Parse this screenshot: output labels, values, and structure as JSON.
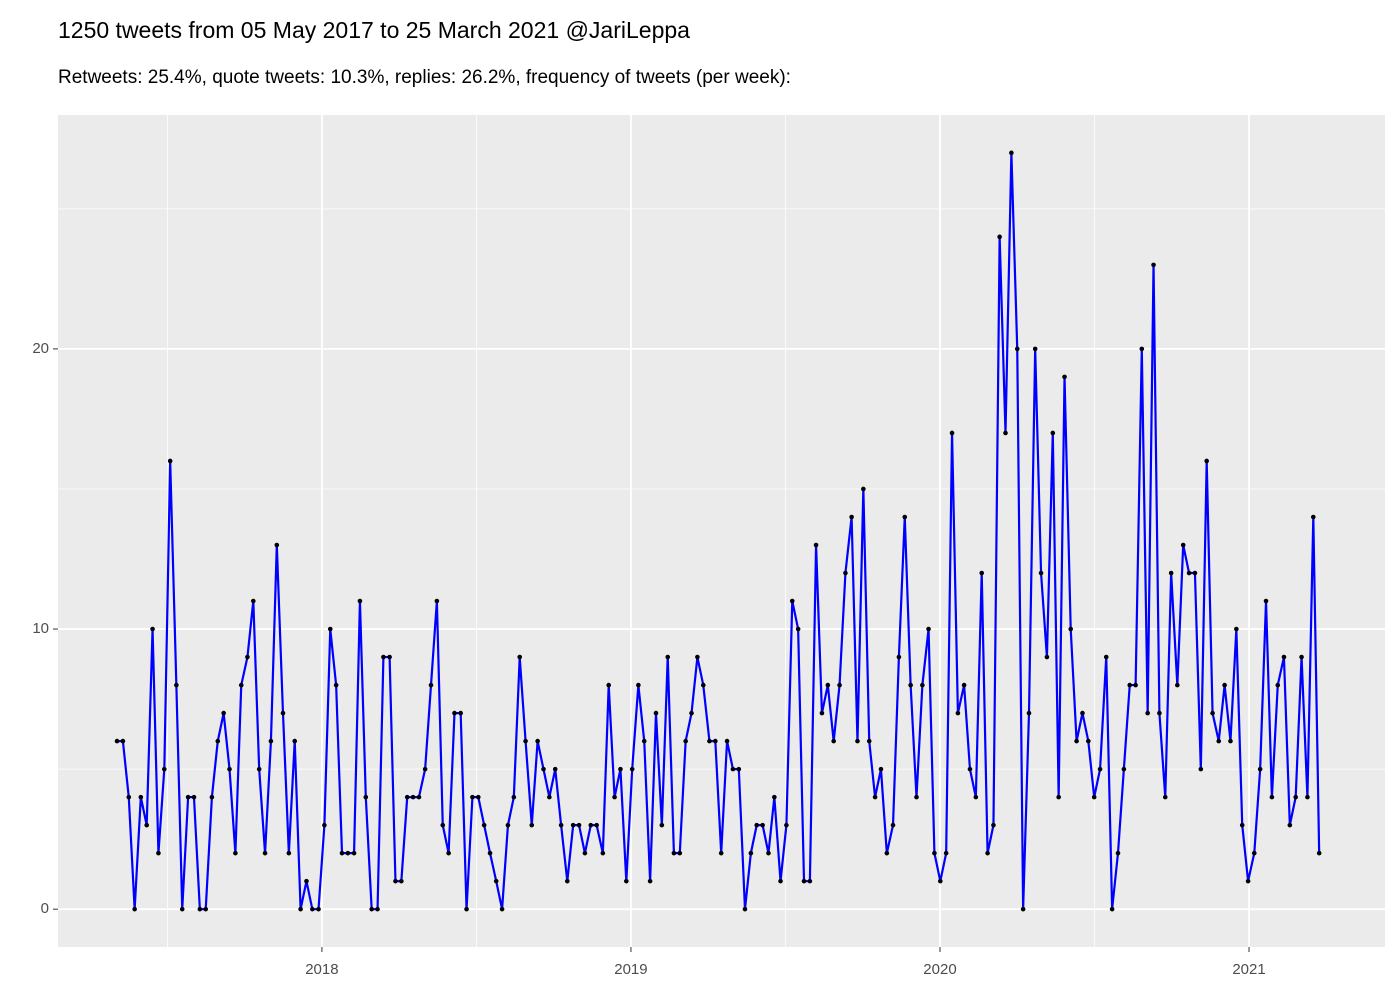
{
  "chart_data": {
    "type": "line",
    "title": "1250 tweets from 05 May 2017 to 25 March 2021 @JariLeppa",
    "subtitle": "Retweets: 25.4%, quote tweets: 10.3%, replies: 26.2%, frequency of tweets (per week):",
    "color": "#0000ff",
    "marker_color": "#000000",
    "grid": true,
    "xlim": [
      2017.146,
      2021.44
    ],
    "xticks": [
      2018,
      2019,
      2020,
      2021
    ],
    "ylim": [
      -1.35,
      28.35
    ],
    "yticks": [
      0,
      10,
      20
    ],
    "x": [
      2017.337,
      2017.356,
      2017.375,
      2017.394,
      2017.414,
      2017.433,
      2017.452,
      2017.471,
      2017.49,
      2017.509,
      2017.529,
      2017.548,
      2017.567,
      2017.586,
      2017.605,
      2017.624,
      2017.644,
      2017.663,
      2017.682,
      2017.701,
      2017.72,
      2017.739,
      2017.759,
      2017.778,
      2017.797,
      2017.816,
      2017.835,
      2017.854,
      2017.874,
      2017.893,
      2017.912,
      2017.931,
      2017.95,
      2017.969,
      2017.989,
      2018.008,
      2018.027,
      2018.046,
      2018.065,
      2018.084,
      2018.104,
      2018.123,
      2018.142,
      2018.161,
      2018.18,
      2018.199,
      2018.219,
      2018.238,
      2018.257,
      2018.276,
      2018.295,
      2018.314,
      2018.334,
      2018.353,
      2018.372,
      2018.391,
      2018.41,
      2018.429,
      2018.449,
      2018.468,
      2018.487,
      2018.506,
      2018.525,
      2018.544,
      2018.564,
      2018.583,
      2018.602,
      2018.621,
      2018.64,
      2018.659,
      2018.679,
      2018.698,
      2018.717,
      2018.736,
      2018.755,
      2018.774,
      2018.794,
      2018.813,
      2018.832,
      2018.851,
      2018.87,
      2018.889,
      2018.909,
      2018.928,
      2018.947,
      2018.966,
      2018.985,
      2019.004,
      2019.024,
      2019.043,
      2019.062,
      2019.081,
      2019.1,
      2019.119,
      2019.139,
      2019.158,
      2019.177,
      2019.196,
      2019.215,
      2019.234,
      2019.254,
      2019.273,
      2019.292,
      2019.311,
      2019.33,
      2019.349,
      2019.369,
      2019.388,
      2019.407,
      2019.426,
      2019.445,
      2019.464,
      2019.484,
      2019.503,
      2019.522,
      2019.541,
      2019.56,
      2019.579,
      2019.599,
      2019.618,
      2019.637,
      2019.656,
      2019.675,
      2019.694,
      2019.714,
      2019.733,
      2019.752,
      2019.771,
      2019.79,
      2019.809,
      2019.828,
      2019.848,
      2019.867,
      2019.886,
      2019.905,
      2019.924,
      2019.943,
      2019.963,
      2019.982,
      2020.001,
      2020.02,
      2020.039,
      2020.058,
      2020.078,
      2020.097,
      2020.116,
      2020.135,
      2020.154,
      2020.173,
      2020.193,
      2020.212,
      2020.231,
      2020.25,
      2020.269,
      2020.288,
      2020.308,
      2020.327,
      2020.346,
      2020.365,
      2020.384,
      2020.403,
      2020.423,
      2020.442,
      2020.461,
      2020.48,
      2020.499,
      2020.518,
      2020.538,
      2020.557,
      2020.576,
      2020.595,
      2020.614,
      2020.633,
      2020.653,
      2020.672,
      2020.691,
      2020.71,
      2020.729,
      2020.748,
      2020.768,
      2020.787,
      2020.806,
      2020.825,
      2020.844,
      2020.863,
      2020.882,
      2020.902,
      2020.921,
      2020.94,
      2020.959,
      2020.978,
      2020.997,
      2021.017,
      2021.036,
      2021.055,
      2021.074,
      2021.093,
      2021.113,
      2021.132,
      2021.151,
      2021.17,
      2021.189,
      2021.208,
      2021.227
    ],
    "values": [
      6,
      6,
      4,
      0,
      4,
      3,
      10,
      2,
      5,
      16,
      8,
      0,
      4,
      4,
      0,
      0,
      4,
      6,
      7,
      5,
      2,
      8,
      9,
      11,
      5,
      2,
      6,
      13,
      7,
      2,
      6,
      0,
      1,
      0,
      0,
      3,
      10,
      8,
      2,
      2,
      2,
      11,
      4,
      0,
      0,
      9,
      9,
      1,
      1,
      4,
      4,
      4,
      5,
      8,
      11,
      3,
      2,
      7,
      7,
      0,
      4,
      4,
      3,
      2,
      1,
      0,
      3,
      4,
      9,
      6,
      3,
      6,
      5,
      4,
      5,
      3,
      1,
      3,
      3,
      2,
      3,
      3,
      2,
      8,
      4,
      5,
      1,
      5,
      8,
      6,
      1,
      7,
      3,
      9,
      2,
      2,
      6,
      7,
      9,
      8,
      6,
      6,
      2,
      6,
      5,
      5,
      0,
      2,
      3,
      3,
      2,
      4,
      1,
      3,
      11,
      10,
      1,
      1,
      13,
      7,
      8,
      6,
      8,
      12,
      14,
      6,
      15,
      6,
      4,
      5,
      2,
      3,
      9,
      14,
      8,
      4,
      8,
      10,
      2,
      1,
      2,
      17,
      7,
      8,
      5,
      4,
      12,
      2,
      3,
      24,
      17,
      27,
      20,
      0,
      7,
      20,
      12,
      9,
      17,
      4,
      19,
      10,
      6,
      7,
      6,
      4,
      5,
      9,
      0,
      2,
      5,
      8,
      8,
      20,
      7,
      23,
      7,
      4,
      12,
      8,
      13,
      12,
      12,
      5,
      16,
      7,
      6,
      8,
      6,
      10,
      3,
      1,
      2,
      5,
      11,
      4,
      8,
      9,
      3,
      4,
      9,
      4,
      14,
      2
    ]
  }
}
